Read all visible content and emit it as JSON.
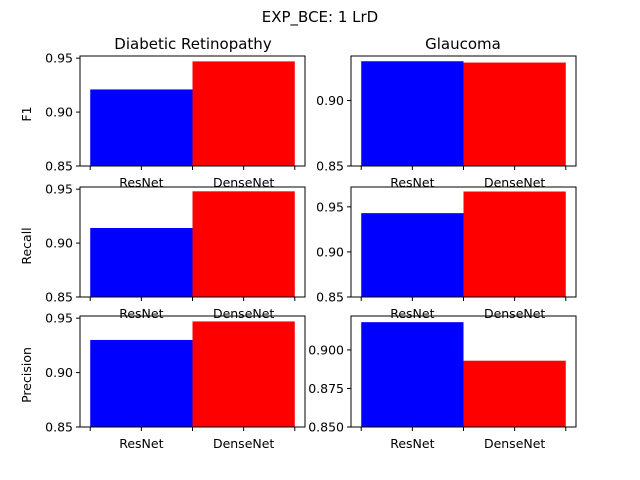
{
  "chart_data": {
    "type": "bar",
    "title": "EXP_BCE: 1 LrD",
    "categories": [
      "ResNet",
      "DenseNet"
    ],
    "colors": [
      "#0000ff",
      "#ff0000"
    ],
    "grid": false,
    "column_titles": [
      "Diabetic Retinopathy",
      "Glaucoma"
    ],
    "row_labels": [
      "F1",
      "Recall",
      "Precision"
    ],
    "panels": [
      {
        "row": 0,
        "col": 0,
        "values": [
          0.921,
          0.947
        ],
        "ylim": [
          0.85,
          0.952
        ],
        "yticks": [
          0.85,
          0.9,
          0.95
        ],
        "ytick_labels": [
          "0.85",
          "0.90",
          "0.95"
        ]
      },
      {
        "row": 0,
        "col": 1,
        "values": [
          0.93,
          0.929
        ],
        "ylim": [
          0.85,
          0.934
        ],
        "yticks": [
          0.85,
          0.9
        ],
        "ytick_labels": [
          "0.85",
          "0.90"
        ]
      },
      {
        "row": 1,
        "col": 0,
        "values": [
          0.914,
          0.948
        ],
        "ylim": [
          0.85,
          0.952
        ],
        "yticks": [
          0.85,
          0.9,
          0.95
        ],
        "ytick_labels": [
          "0.85",
          "0.90",
          "0.95"
        ]
      },
      {
        "row": 1,
        "col": 1,
        "values": [
          0.943,
          0.967
        ],
        "ylim": [
          0.85,
          0.972
        ],
        "yticks": [
          0.85,
          0.9,
          0.95
        ],
        "ytick_labels": [
          "0.85",
          "0.90",
          "0.95"
        ]
      },
      {
        "row": 2,
        "col": 0,
        "values": [
          0.93,
          0.947
        ],
        "ylim": [
          0.85,
          0.952
        ],
        "yticks": [
          0.85,
          0.9,
          0.95
        ],
        "ytick_labels": [
          "0.85",
          "0.90",
          "0.95"
        ]
      },
      {
        "row": 2,
        "col": 1,
        "values": [
          0.918,
          0.893
        ],
        "ylim": [
          0.85,
          0.922
        ],
        "yticks": [
          0.85,
          0.875,
          0.9
        ],
        "ytick_labels": [
          "0.850",
          "0.875",
          "0.900"
        ]
      }
    ]
  }
}
